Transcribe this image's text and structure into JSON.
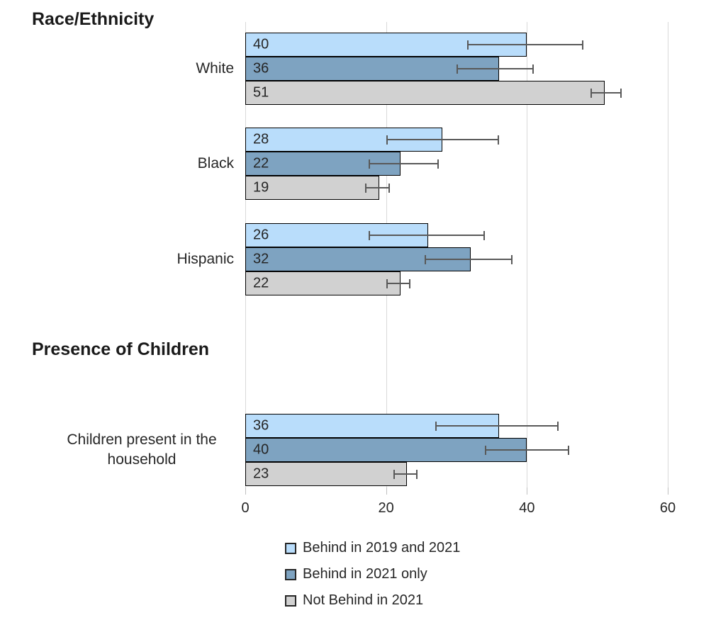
{
  "chart_data": {
    "type": "bar",
    "orientation": "horizontal",
    "grid": true,
    "legend_position": "bottom",
    "xaxis": {
      "min": 0,
      "max": 60,
      "ticks": [
        0,
        20,
        40,
        60
      ]
    },
    "series": [
      {
        "name": "Behind in 2019 and 2021",
        "color": "#B9DDFB"
      },
      {
        "name": "Behind in 2021 only",
        "color": "#7EA3C1"
      },
      {
        "name": "Not Behind in 2021",
        "color": "#D1D1D1"
      }
    ],
    "sections": [
      {
        "title": "Race/Ethnicity",
        "groups": [
          {
            "label": "White",
            "bars": [
              {
                "value": 40,
                "ci": [
                  31.5,
                  48
                ]
              },
              {
                "value": 36,
                "ci": [
                  30,
                  41
                ]
              },
              {
                "value": 51,
                "ci": [
                  49,
                  53.5
                ]
              }
            ]
          },
          {
            "label": "Black",
            "bars": [
              {
                "value": 28,
                "ci": [
                  20,
                  36
                ]
              },
              {
                "value": 22,
                "ci": [
                  17.5,
                  27.5
                ]
              },
              {
                "value": 19,
                "ci": [
                  17,
                  20.5
                ]
              }
            ]
          },
          {
            "label": "Hispanic",
            "bars": [
              {
                "value": 26,
                "ci": [
                  17.5,
                  34
                ]
              },
              {
                "value": 32,
                "ci": [
                  25.5,
                  38
                ]
              },
              {
                "value": 22,
                "ci": [
                  20,
                  23.5
                ]
              }
            ]
          }
        ]
      },
      {
        "title": "Presence of Children",
        "groups": [
          {
            "label": "Children present in the household",
            "bars": [
              {
                "value": 36,
                "ci": [
                  27,
                  44.5
                ]
              },
              {
                "value": 40,
                "ci": [
                  34,
                  46
                ]
              },
              {
                "value": 23,
                "ci": [
                  21,
                  24.5
                ]
              }
            ]
          }
        ]
      }
    ],
    "colors": {
      "gridline": "#d9d9d9",
      "tick": "#bfbfbf",
      "error_bar": "#595959",
      "bar_border": "#000000",
      "text": "#262626"
    }
  }
}
